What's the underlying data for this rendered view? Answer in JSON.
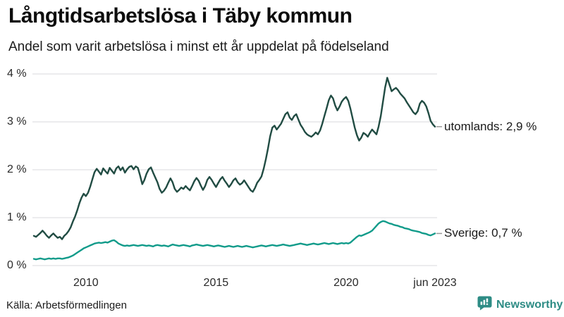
{
  "header": {
    "title": "Långtidsarbetslösa i Täby kommun",
    "subtitle": "Andel som varit arbetslösa i minst ett år uppdelat på födelseland"
  },
  "chart_data": {
    "type": "line",
    "title": "Långtidsarbetslösa i Täby kommun",
    "subtitle": "Andel som varit arbetslösa i minst ett år uppdelat på födelseland",
    "ylabel": "",
    "xlabel": "",
    "ylim": [
      0,
      4
    ],
    "grid": "horizontal",
    "x_unit": "month",
    "x_range": [
      2008.0,
      2023.417
    ],
    "y_ticks": [
      "0 %",
      "1 %",
      "2 %",
      "3 %",
      "4 %"
    ],
    "x_ticks": [
      {
        "label": "2010",
        "t": 2010
      },
      {
        "label": "2015",
        "t": 2015
      },
      {
        "label": "2020",
        "t": 2020
      },
      {
        "label": "jun 2023",
        "t": 2023.417
      }
    ],
    "series": [
      {
        "key": "utomlands",
        "name": "utomlands",
        "end_label": "utomlands: 2,9 %",
        "end_value": "2,9 %",
        "color": "#214c43",
        "values": [
          0.62,
          0.6,
          0.64,
          0.68,
          0.73,
          0.68,
          0.62,
          0.58,
          0.63,
          0.67,
          0.62,
          0.58,
          0.6,
          0.55,
          0.62,
          0.66,
          0.72,
          0.8,
          0.92,
          1.02,
          1.15,
          1.3,
          1.42,
          1.5,
          1.45,
          1.52,
          1.65,
          1.8,
          1.95,
          2.02,
          1.96,
          1.9,
          2.03,
          1.97,
          1.92,
          2.04,
          1.98,
          1.92,
          2.03,
          2.07,
          1.99,
          2.05,
          1.94,
          2.01,
          2.06,
          2.08,
          2.01,
          2.07,
          2.04,
          1.88,
          1.7,
          1.79,
          1.92,
          2.01,
          2.05,
          1.94,
          1.84,
          1.74,
          1.6,
          1.52,
          1.56,
          1.63,
          1.73,
          1.82,
          1.74,
          1.6,
          1.54,
          1.58,
          1.63,
          1.6,
          1.66,
          1.61,
          1.57,
          1.66,
          1.76,
          1.83,
          1.77,
          1.67,
          1.58,
          1.66,
          1.79,
          1.85,
          1.79,
          1.71,
          1.64,
          1.72,
          1.8,
          1.85,
          1.77,
          1.71,
          1.64,
          1.7,
          1.78,
          1.82,
          1.74,
          1.69,
          1.72,
          1.78,
          1.71,
          1.64,
          1.57,
          1.54,
          1.62,
          1.73,
          1.79,
          1.86,
          2.02,
          2.22,
          2.45,
          2.7,
          2.88,
          2.92,
          2.84,
          2.9,
          2.96,
          3.06,
          3.16,
          3.2,
          3.09,
          3.04,
          3.12,
          3.16,
          3.05,
          2.94,
          2.87,
          2.79,
          2.74,
          2.71,
          2.69,
          2.73,
          2.78,
          2.74,
          2.82,
          2.96,
          3.12,
          3.28,
          3.45,
          3.55,
          3.49,
          3.34,
          3.24,
          3.32,
          3.42,
          3.48,
          3.52,
          3.44,
          3.28,
          3.08,
          2.88,
          2.72,
          2.61,
          2.67,
          2.77,
          2.74,
          2.69,
          2.77,
          2.84,
          2.79,
          2.74,
          2.9,
          3.12,
          3.42,
          3.72,
          3.92,
          3.78,
          3.64,
          3.68,
          3.71,
          3.66,
          3.59,
          3.54,
          3.49,
          3.41,
          3.34,
          3.27,
          3.2,
          3.16,
          3.22,
          3.38,
          3.44,
          3.4,
          3.32,
          3.18,
          3.02,
          2.95,
          2.9
        ]
      },
      {
        "key": "sverige",
        "name": "Sverige",
        "end_label": "Sverige: 0,7 %",
        "end_value": "0,7 %",
        "color": "#119b8a",
        "values": [
          0.14,
          0.13,
          0.14,
          0.15,
          0.14,
          0.13,
          0.14,
          0.15,
          0.14,
          0.15,
          0.14,
          0.15,
          0.15,
          0.14,
          0.15,
          0.16,
          0.17,
          0.19,
          0.21,
          0.24,
          0.27,
          0.3,
          0.33,
          0.36,
          0.38,
          0.4,
          0.42,
          0.44,
          0.46,
          0.47,
          0.48,
          0.47,
          0.48,
          0.49,
          0.48,
          0.5,
          0.52,
          0.53,
          0.5,
          0.46,
          0.44,
          0.42,
          0.41,
          0.42,
          0.41,
          0.42,
          0.43,
          0.42,
          0.41,
          0.42,
          0.43,
          0.42,
          0.41,
          0.42,
          0.41,
          0.4,
          0.42,
          0.43,
          0.42,
          0.41,
          0.42,
          0.41,
          0.4,
          0.42,
          0.44,
          0.43,
          0.42,
          0.41,
          0.42,
          0.43,
          0.42,
          0.41,
          0.4,
          0.42,
          0.43,
          0.44,
          0.43,
          0.42,
          0.41,
          0.42,
          0.43,
          0.42,
          0.41,
          0.4,
          0.41,
          0.42,
          0.41,
          0.4,
          0.39,
          0.4,
          0.41,
          0.4,
          0.39,
          0.4,
          0.41,
          0.4,
          0.39,
          0.4,
          0.41,
          0.4,
          0.39,
          0.38,
          0.39,
          0.4,
          0.41,
          0.42,
          0.41,
          0.4,
          0.41,
          0.42,
          0.43,
          0.42,
          0.41,
          0.42,
          0.43,
          0.44,
          0.43,
          0.42,
          0.41,
          0.42,
          0.43,
          0.44,
          0.45,
          0.46,
          0.45,
          0.44,
          0.43,
          0.44,
          0.45,
          0.46,
          0.45,
          0.44,
          0.45,
          0.46,
          0.47,
          0.46,
          0.45,
          0.46,
          0.47,
          0.46,
          0.45,
          0.46,
          0.47,
          0.46,
          0.47,
          0.46,
          0.48,
          0.52,
          0.56,
          0.6,
          0.63,
          0.62,
          0.64,
          0.66,
          0.68,
          0.7,
          0.73,
          0.78,
          0.83,
          0.88,
          0.91,
          0.93,
          0.92,
          0.9,
          0.88,
          0.87,
          0.85,
          0.84,
          0.83,
          0.81,
          0.8,
          0.78,
          0.77,
          0.76,
          0.74,
          0.73,
          0.72,
          0.71,
          0.7,
          0.68,
          0.67,
          0.66,
          0.64,
          0.63,
          0.65,
          0.67
        ]
      }
    ],
    "legend_position": "end-of-line"
  },
  "footer": {
    "source": "Källa: Arbetsförmedlingen",
    "brand": "Newsworthy"
  },
  "colors": {
    "background": "#ffffff",
    "grid": "#e1e1e4",
    "text": "#1a1a1a",
    "dash": "#9a9a9a",
    "brand_teal": "#2e8c85",
    "series_utomlands": "#214c43",
    "series_sverige": "#119b8a"
  }
}
